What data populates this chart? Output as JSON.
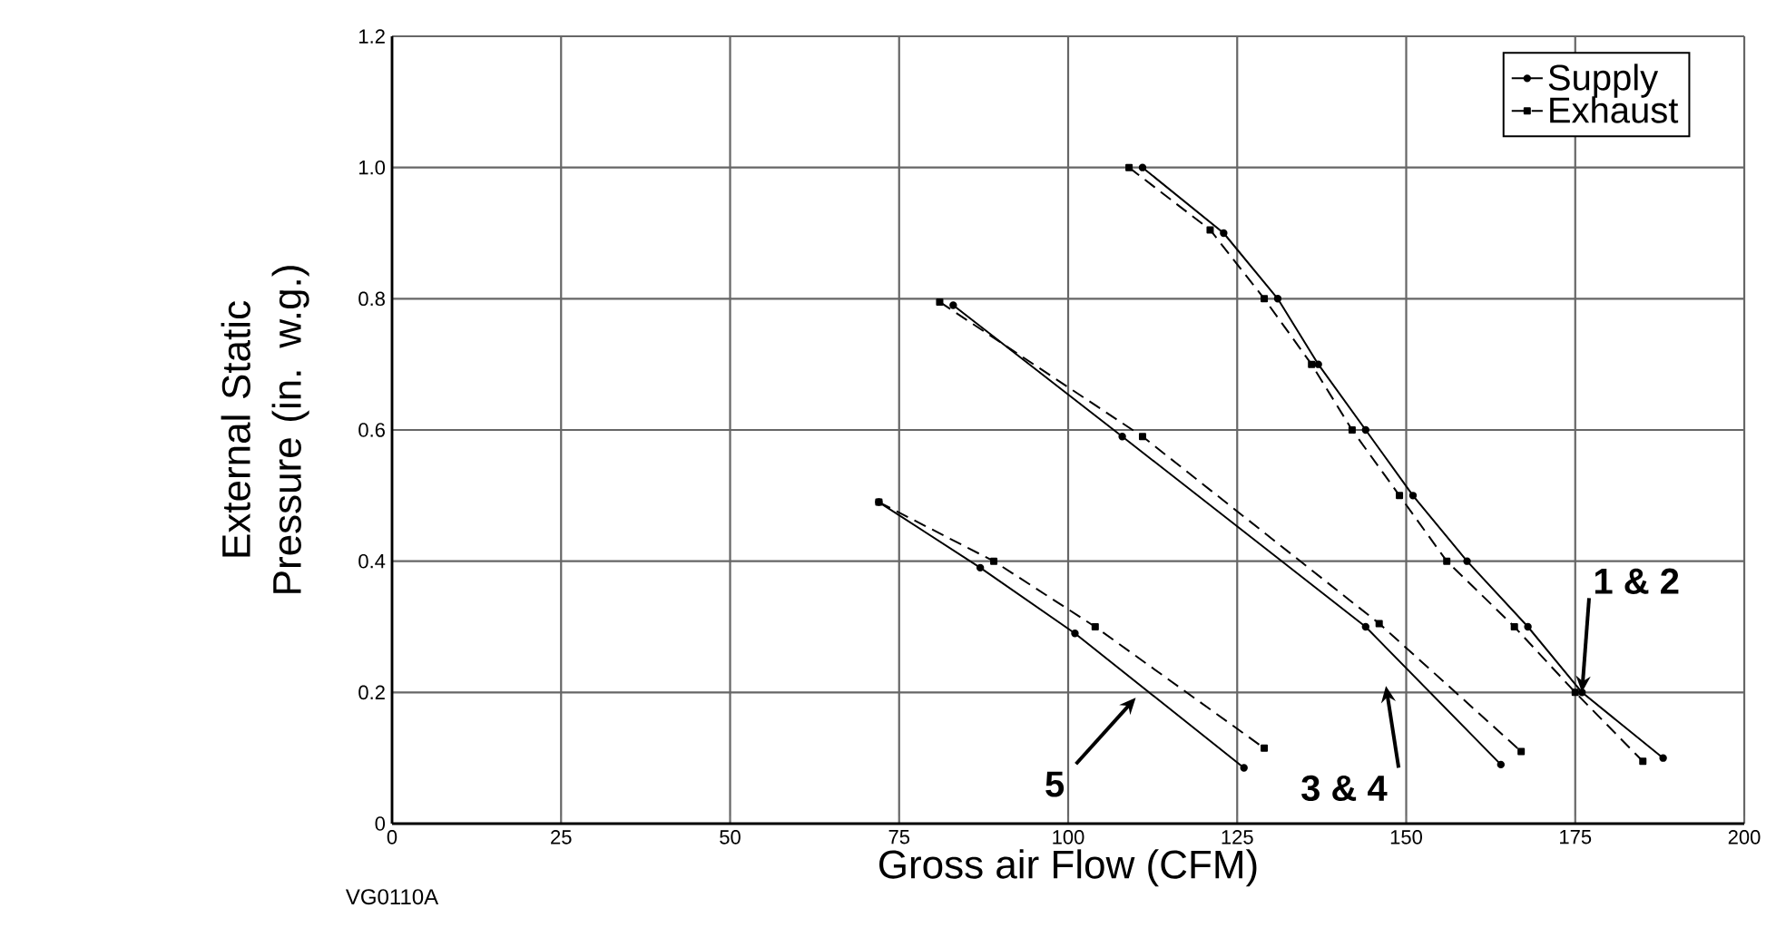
{
  "chart_data": {
    "type": "line",
    "xlabel": "Gross air Flow (CFM)",
    "ylabel": "External Static Pressure (in. w.g.)",
    "xlim": [
      0,
      200
    ],
    "ylim": [
      0,
      1.2
    ],
    "xticks": [
      0,
      25,
      50,
      75,
      100,
      125,
      150,
      175,
      200
    ],
    "yticks": [
      0,
      0.2,
      0.4,
      0.6,
      0.8,
      {
        "value": 1,
        "label": "1.0"
      },
      {
        "value": 1.2,
        "label": "1.2"
      }
    ],
    "grid": true,
    "legend": "top right",
    "series": [
      {
        "name": "Supply",
        "color": "#000000",
        "marker": "circle",
        "line_style": "solid",
        "x": [
          111,
          123,
          131,
          137,
          144,
          151,
          159,
          168,
          176,
          188
        ],
        "values": [
          1.0,
          0.9,
          0.8,
          0.7,
          0.6,
          0.5,
          0.4,
          0.3,
          0.2,
          0.1
        ]
      },
      {
        "name": "Exhaust",
        "color": "#000000",
        "marker": "square",
        "line_style": "dashed",
        "x": [
          109,
          121,
          129,
          136,
          142,
          149,
          156,
          166,
          175,
          185
        ],
        "values": [
          1.0,
          0.905,
          0.8,
          0.7,
          0.6,
          0.5,
          0.4,
          0.3,
          0.2,
          0.095
        ]
      },
      {
        "color": "#000000",
        "marker": "circle",
        "line_style": "solid",
        "x": [
          83,
          108,
          144,
          164
        ],
        "values": [
          0.79,
          0.59,
          0.3,
          0.09
        ]
      },
      {
        "color": "#000000",
        "marker": "square",
        "line_style": "dashed",
        "x": [
          81,
          111,
          146,
          167
        ],
        "values": [
          0.795,
          0.59,
          0.305,
          0.11
        ]
      },
      {
        "color": "#000000",
        "marker": "circle",
        "line_style": "solid",
        "x": [
          72,
          87,
          101,
          126
        ],
        "values": [
          0.49,
          0.39,
          0.29,
          0.085
        ]
      },
      {
        "color": "#000000",
        "marker": "square",
        "line_style": "dashed",
        "x": [
          72,
          89,
          104,
          129
        ],
        "values": [
          0.49,
          0.4,
          0.3,
          0.115
        ]
      }
    ],
    "annotations": [
      {
        "text": "1 & 2",
        "x": 176,
        "y": 0.2
      },
      "3 & 4",
      "5",
      "VG0110A"
    ]
  }
}
